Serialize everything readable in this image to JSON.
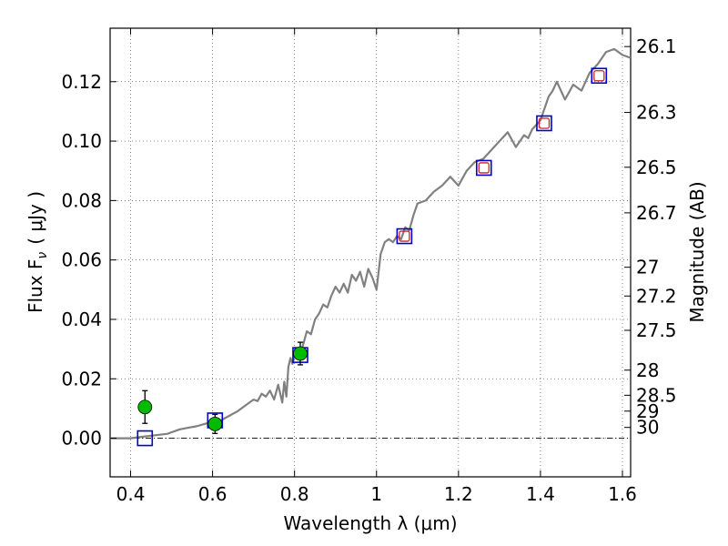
{
  "chart_data": {
    "type": "scatter",
    "xlabel": "Wavelength  λ (μm)",
    "ylabel_left": "Flux  F",
    "ylabel_left_sub": "ν",
    "ylabel_left_unit": "( μJy )",
    "ylabel_right": "Magnitude (AB)",
    "xlim": [
      0.35,
      1.62
    ],
    "ylim": [
      -0.013,
      0.138
    ],
    "grid": true,
    "x_ticks": [
      0.4,
      0.6,
      0.8,
      1.0,
      1.2,
      1.4,
      1.6
    ],
    "x_tick_labels": [
      "0.4",
      "0.6",
      "0.8",
      "1",
      "1.2",
      "1.4",
      "1.6"
    ],
    "y_ticks": [
      0.0,
      0.02,
      0.04,
      0.06,
      0.08,
      0.1,
      0.12
    ],
    "y_tick_labels": [
      "0.00",
      "0.02",
      "0.04",
      "0.06",
      "0.08",
      "0.10",
      "0.12"
    ],
    "mag_ticks": [
      "26.1",
      "26.3",
      "26.5",
      "26.7",
      "27",
      "27.2",
      "27.5",
      "28",
      "28.5",
      "29",
      "30"
    ],
    "colors": {
      "spectrum": "#808080",
      "observed": "#00bb00",
      "model_box": "#0000cc",
      "model_inner": "#cc2222",
      "baseline": "#000000"
    },
    "series": [
      {
        "kind": "spectrum",
        "x": [
          0.35,
          0.4,
          0.43,
          0.46,
          0.49,
          0.5,
          0.52,
          0.54,
          0.56,
          0.58,
          0.6,
          0.62,
          0.64,
          0.66,
          0.68,
          0.69,
          0.7,
          0.71,
          0.72,
          0.73,
          0.74,
          0.75,
          0.76,
          0.77,
          0.775,
          0.78,
          0.785,
          0.79,
          0.795,
          0.8,
          0.81,
          0.82,
          0.83,
          0.84,
          0.85,
          0.86,
          0.87,
          0.88,
          0.89,
          0.9,
          0.91,
          0.92,
          0.93,
          0.94,
          0.95,
          0.96,
          0.97,
          0.98,
          0.99,
          1.0,
          1.01,
          1.02,
          1.03,
          1.04,
          1.05,
          1.06,
          1.07,
          1.08,
          1.09,
          1.1,
          1.12,
          1.14,
          1.16,
          1.18,
          1.2,
          1.22,
          1.24,
          1.26,
          1.28,
          1.3,
          1.32,
          1.34,
          1.36,
          1.37,
          1.38,
          1.4,
          1.42,
          1.43,
          1.44,
          1.46,
          1.48,
          1.5,
          1.52,
          1.54,
          1.56,
          1.58,
          1.6,
          1.62
        ],
        "y": [
          0.0,
          0.0,
          0.0005,
          0.001,
          0.0015,
          0.002,
          0.003,
          0.0035,
          0.004,
          0.0048,
          0.0055,
          0.006,
          0.0075,
          0.009,
          0.011,
          0.012,
          0.013,
          0.0125,
          0.015,
          0.014,
          0.016,
          0.013,
          0.018,
          0.012,
          0.019,
          0.014,
          0.024,
          0.027,
          0.025,
          0.028,
          0.029,
          0.031,
          0.036,
          0.035,
          0.04,
          0.042,
          0.045,
          0.044,
          0.048,
          0.051,
          0.049,
          0.052,
          0.049,
          0.055,
          0.053,
          0.056,
          0.051,
          0.057,
          0.054,
          0.05,
          0.062,
          0.066,
          0.067,
          0.066,
          0.068,
          0.067,
          0.071,
          0.07,
          0.075,
          0.079,
          0.08,
          0.083,
          0.085,
          0.088,
          0.085,
          0.09,
          0.093,
          0.094,
          0.097,
          0.1,
          0.103,
          0.098,
          0.102,
          0.101,
          0.104,
          0.107,
          0.115,
          0.117,
          0.12,
          0.114,
          0.119,
          0.117,
          0.123,
          0.126,
          0.13,
          0.131,
          0.129,
          0.128
        ]
      },
      {
        "kind": "model_photometry",
        "x": [
          0.435,
          0.606,
          0.814,
          1.068,
          1.262,
          1.409,
          1.543
        ],
        "y": [
          0.0,
          0.006,
          0.028,
          0.068,
          0.091,
          0.106,
          0.122
        ]
      },
      {
        "kind": "observed_photometry",
        "x": [
          0.435,
          0.606,
          0.814
        ],
        "y": [
          0.0105,
          0.0048,
          0.0285
        ],
        "yerr": [
          0.0055,
          0.0032,
          0.0038
        ]
      }
    ]
  }
}
